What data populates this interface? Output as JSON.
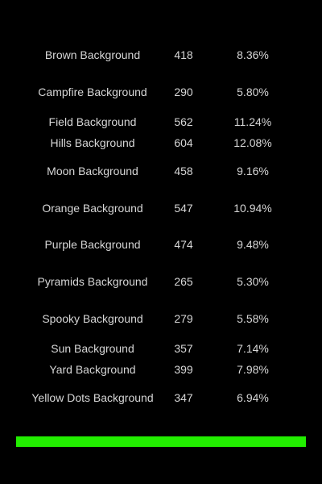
{
  "traits": [
    {
      "name": "Brown Background",
      "count": "418",
      "percent": "8.36%"
    },
    {
      "name": "Campfire Background",
      "count": "290",
      "percent": "5.80%"
    },
    {
      "name": "Field Background",
      "count": "562",
      "percent": "11.24%"
    },
    {
      "name": "Hills Background",
      "count": "604",
      "percent": "12.08%"
    },
    {
      "name": "Moon Background",
      "count": "458",
      "percent": "9.16%"
    },
    {
      "name": "Orange Background",
      "count": "547",
      "percent": "10.94%"
    },
    {
      "name": "Purple Background",
      "count": "474",
      "percent": "9.48%"
    },
    {
      "name": "Pyramids Background",
      "count": "265",
      "percent": "5.30%"
    },
    {
      "name": "Spooky Background",
      "count": "279",
      "percent": "5.58%"
    },
    {
      "name": "Sun Background",
      "count": "357",
      "percent": "7.14%"
    },
    {
      "name": "Yard Background",
      "count": "399",
      "percent": "7.98%"
    },
    {
      "name": "Yellow Dots Background",
      "count": "347",
      "percent": "6.94%"
    }
  ],
  "colors": {
    "background": "#000000",
    "text": "#d6d6d6",
    "accent_bar": "#22ee00"
  }
}
